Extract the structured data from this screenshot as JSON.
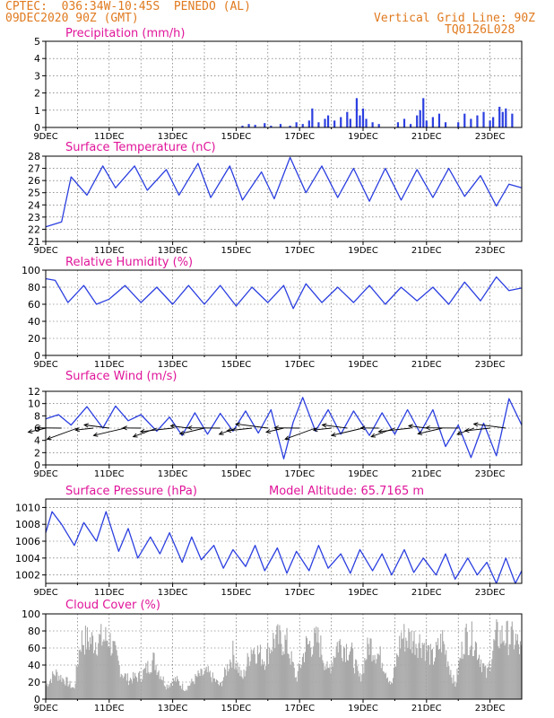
{
  "header": {
    "line1": "CPTEC:  036:34W-10:45S  PENEDO (AL)",
    "line2": "09DEC2020 90Z (GMT)",
    "grid_note": "Vertical Grid Line: 90Z",
    "code": "TQ0126L028"
  },
  "colors": {
    "header": "#e07a1f",
    "title": "#e0159a",
    "series": "#2b3fe0",
    "cloud": "#a8a8a8",
    "axis": "#000000",
    "grid": "#555555"
  },
  "x_axis": {
    "start_day": 9,
    "end_day": 24,
    "ticks": [
      {
        "day": 9,
        "label": "9DEC"
      },
      {
        "day": 11,
        "label": "11DEC"
      },
      {
        "day": 13,
        "label": "13DEC"
      },
      {
        "day": 15,
        "label": "15DEC"
      },
      {
        "day": 17,
        "label": "17DEC"
      },
      {
        "day": 19,
        "label": "19DEC"
      },
      {
        "day": 21,
        "label": "21DEC"
      },
      {
        "day": 23,
        "label": "23DEC"
      }
    ]
  },
  "chart_data": [
    {
      "type": "bar",
      "title": "Precipitation (mm/h)",
      "ylim": [
        0,
        5
      ],
      "yticks": [
        0,
        1,
        2,
        3,
        4,
        5
      ],
      "series": [
        {
          "name": "",
          "x": [
            15.2,
            15.4,
            15.6,
            15.9,
            16.1,
            16.4,
            16.7,
            16.9,
            17.1,
            17.3,
            17.4,
            17.6,
            17.8,
            17.9,
            18.1,
            18.3,
            18.5,
            18.6,
            18.8,
            18.9,
            19.0,
            19.1,
            19.3,
            19.5,
            20.1,
            20.3,
            20.5,
            20.7,
            20.8,
            20.9,
            21.0,
            21.2,
            21.4,
            21.6,
            22.0,
            22.2,
            22.4,
            22.6,
            22.8,
            23.0,
            23.1,
            23.3,
            23.4,
            23.5,
            23.7
          ],
          "values": [
            0.1,
            0.2,
            0.15,
            0.25,
            0.1,
            0.2,
            0.1,
            0.3,
            0.2,
            0.4,
            1.1,
            0.3,
            0.5,
            0.7,
            0.4,
            0.6,
            0.9,
            0.5,
            1.7,
            0.7,
            1.1,
            0.5,
            0.3,
            0.2,
            0.3,
            0.5,
            0.2,
            0.7,
            1.0,
            1.7,
            0.4,
            0.6,
            0.8,
            0.3,
            0.3,
            0.8,
            0.5,
            0.7,
            0.9,
            0.4,
            0.6,
            1.2,
            0.9,
            1.1,
            0.8
          ]
        }
      ]
    },
    {
      "type": "line",
      "title": "Surface Temperature (nC)",
      "ylim": [
        21,
        28
      ],
      "yticks": [
        21,
        22,
        23,
        24,
        25,
        26,
        27,
        28
      ],
      "series": [
        {
          "name": "",
          "x": [
            9.0,
            9.5,
            9.8,
            10.3,
            10.8,
            11.2,
            11.8,
            12.2,
            12.8,
            13.2,
            13.8,
            14.2,
            14.8,
            15.2,
            15.8,
            16.2,
            16.7,
            17.2,
            17.7,
            18.2,
            18.7,
            19.2,
            19.7,
            20.2,
            20.7,
            21.2,
            21.7,
            22.2,
            22.7,
            23.2,
            23.6,
            24.0
          ],
          "values": [
            22.2,
            22.6,
            26.3,
            24.8,
            27.2,
            25.4,
            27.2,
            25.2,
            26.9,
            24.8,
            27.4,
            24.6,
            27.2,
            24.4,
            26.7,
            24.5,
            27.9,
            25.0,
            27.2,
            24.6,
            27.0,
            24.3,
            27.0,
            24.4,
            26.9,
            24.6,
            27.0,
            24.7,
            26.4,
            23.9,
            25.7,
            25.4
          ]
        }
      ]
    },
    {
      "type": "line",
      "title": "Relative Humidity (%)",
      "ylim": [
        0,
        100
      ],
      "yticks": [
        0,
        20,
        40,
        60,
        80,
        100
      ],
      "series": [
        {
          "name": "",
          "x": [
            9.0,
            9.3,
            9.7,
            10.2,
            10.6,
            11.0,
            11.5,
            12.0,
            12.5,
            13.0,
            13.5,
            14.0,
            14.5,
            15.0,
            15.5,
            16.0,
            16.5,
            16.8,
            17.2,
            17.7,
            18.2,
            18.7,
            19.2,
            19.7,
            20.2,
            20.7,
            21.2,
            21.7,
            22.2,
            22.7,
            23.2,
            23.6,
            24.0
          ],
          "values": [
            90,
            88,
            62,
            82,
            60,
            66,
            82,
            62,
            80,
            60,
            82,
            60,
            82,
            58,
            80,
            62,
            82,
            55,
            84,
            62,
            80,
            62,
            82,
            60,
            80,
            64,
            80,
            60,
            86,
            64,
            92,
            76,
            79
          ]
        }
      ]
    },
    {
      "type": "line",
      "title": "Surface Wind (m/s)",
      "ylim": [
        0,
        12
      ],
      "yticks": [
        0,
        2,
        4,
        6,
        8,
        10,
        12
      ],
      "series": [
        {
          "name": "",
          "x": [
            9.0,
            9.4,
            9.8,
            10.3,
            10.8,
            11.2,
            11.6,
            12.0,
            12.5,
            12.9,
            13.3,
            13.7,
            14.1,
            14.5,
            14.9,
            15.3,
            15.7,
            16.1,
            16.5,
            16.8,
            17.1,
            17.5,
            17.9,
            18.3,
            18.7,
            19.2,
            19.6,
            20.0,
            20.4,
            20.8,
            21.2,
            21.6,
            22.0,
            22.4,
            22.8,
            23.2,
            23.6,
            24.0
          ],
          "values": [
            7.5,
            8.2,
            6.5,
            9.5,
            6.0,
            9.6,
            7.2,
            8.2,
            5.5,
            7.8,
            4.8,
            8.5,
            5.0,
            8.4,
            5.5,
            8.8,
            5.2,
            9.0,
            1.0,
            7.0,
            11.0,
            5.5,
            9.0,
            5.0,
            8.8,
            4.8,
            8.5,
            5.0,
            9.0,
            5.2,
            9.0,
            3.0,
            6.5,
            1.2,
            6.8,
            1.5,
            10.8,
            6.5
          ]
        }
      ]
    },
    {
      "type": "line",
      "title": "Surface Pressure (hPa)",
      "annotation": "Model Altitude: 65.7165  m",
      "ylim": [
        1001,
        1011
      ],
      "yticks": [
        1002,
        1004,
        1006,
        1008,
        1010
      ],
      "series": [
        {
          "name": "",
          "x": [
            9.0,
            9.2,
            9.5,
            9.9,
            10.2,
            10.6,
            10.9,
            11.3,
            11.6,
            11.9,
            12.3,
            12.6,
            12.9,
            13.3,
            13.6,
            13.9,
            14.3,
            14.6,
            14.9,
            15.3,
            15.6,
            15.9,
            16.3,
            16.6,
            16.9,
            17.3,
            17.6,
            17.9,
            18.3,
            18.6,
            18.9,
            19.3,
            19.6,
            19.9,
            20.3,
            20.6,
            20.9,
            21.3,
            21.6,
            21.9,
            22.3,
            22.6,
            22.9,
            23.2,
            23.5,
            23.8,
            24.0
          ],
          "values": [
            1007.0,
            1009.5,
            1008.0,
            1005.5,
            1008.2,
            1006.0,
            1009.5,
            1004.8,
            1007.5,
            1004.0,
            1006.5,
            1004.5,
            1007.0,
            1003.5,
            1006.5,
            1003.8,
            1005.5,
            1002.8,
            1005.0,
            1003.0,
            1005.5,
            1002.5,
            1005.2,
            1002.2,
            1004.8,
            1002.5,
            1005.5,
            1002.8,
            1004.5,
            1002.2,
            1005.0,
            1002.5,
            1004.5,
            1002.0,
            1005.0,
            1002.3,
            1004.0,
            1002.0,
            1004.5,
            1001.5,
            1004.0,
            1002.0,
            1003.5,
            1001.0,
            1004.0,
            1001.0,
            1002.5
          ]
        }
      ]
    },
    {
      "type": "area",
      "title": "Cloud Cover (%)",
      "ylim": [
        0,
        100
      ],
      "yticks": [
        0,
        20,
        40,
        60,
        80,
        100
      ],
      "series": [
        {
          "name": "",
          "x": [
            9.0,
            9.3,
            9.7,
            9.9,
            10.1,
            10.5,
            11.0,
            11.4,
            11.6,
            12.0,
            12.4,
            12.8,
            13.1,
            13.4,
            13.8,
            14.1,
            14.5,
            14.9,
            15.2,
            15.5,
            15.9,
            16.2,
            16.6,
            16.9,
            17.2,
            17.6,
            17.9,
            18.2,
            18.6,
            18.9,
            19.2,
            19.6,
            19.9,
            20.2,
            20.6,
            20.9,
            21.2,
            21.5,
            21.9,
            22.2,
            22.5,
            22.9,
            23.2,
            23.5,
            23.8,
            24.0
          ],
          "values": [
            20,
            40,
            25,
            15,
            90,
            88,
            92,
            40,
            30,
            35,
            60,
            20,
            30,
            15,
            35,
            40,
            20,
            70,
            30,
            80,
            60,
            92,
            85,
            30,
            80,
            90,
            40,
            85,
            75,
            30,
            85,
            60,
            20,
            95,
            90,
            85,
            60,
            90,
            20,
            95,
            90,
            35,
            95,
            95,
            90,
            70
          ]
        }
      ]
    }
  ]
}
